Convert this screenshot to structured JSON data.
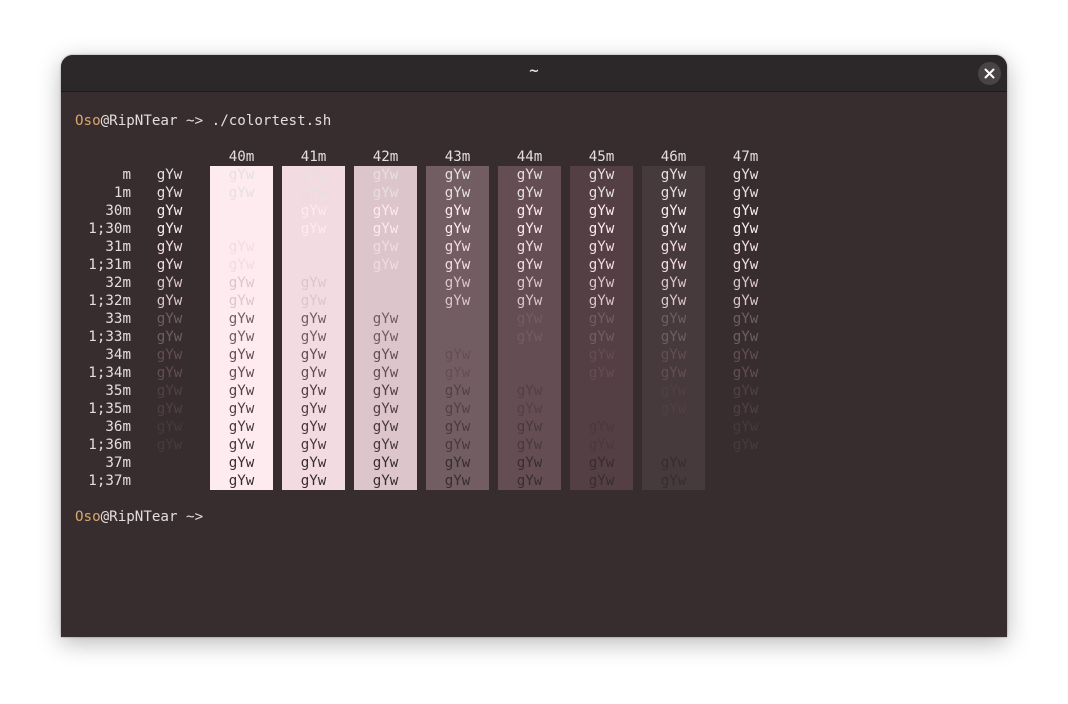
{
  "window": {
    "title": "~"
  },
  "prompt": {
    "user": "Oso",
    "host": "@RipNTear ~>",
    "command": "./colortest.sh"
  },
  "prompt2": {
    "user": "Oso",
    "host": "@RipNTear ~>"
  },
  "table": {
    "sample_text": "gYw",
    "col_headers": [
      "40m",
      "41m",
      "42m",
      "43m",
      "44m",
      "45m",
      "46m",
      "47m"
    ],
    "row_labels": [
      "m",
      "1m",
      "30m",
      "1;30m",
      "31m",
      "1;31m",
      "32m",
      "1;32m",
      "33m",
      "1;33m",
      "34m",
      "1;34m",
      "35m",
      "1;35m",
      "36m",
      "1;36m",
      "37m",
      "1;37m"
    ],
    "background_colors": [
      "#372d2f",
      "#fdebf0",
      "#f3dbe2",
      "#dcc5cb",
      "#725e62",
      "#644e53",
      "#533f44",
      "#463a3d",
      "#372d2f"
    ],
    "foreground_colors": [
      "#e6dfe0",
      "#e6dfe0",
      "#fdebf0",
      "#fdebf0",
      "#f3dbe2",
      "#f3dbe2",
      "#dcc5cb",
      "#dcc5cb",
      "#725e62",
      "#725e62",
      "#644e53",
      "#644e53",
      "#533f44",
      "#533f44",
      "#463a3d",
      "#463a3d",
      "#372d2f",
      "#372d2f"
    ]
  },
  "colors": {
    "prompt_user": "#d9a66b",
    "terminal_bg": "#372d2f",
    "titlebar_bg": "#2c282a"
  },
  "icons": {
    "close": "close-icon"
  }
}
